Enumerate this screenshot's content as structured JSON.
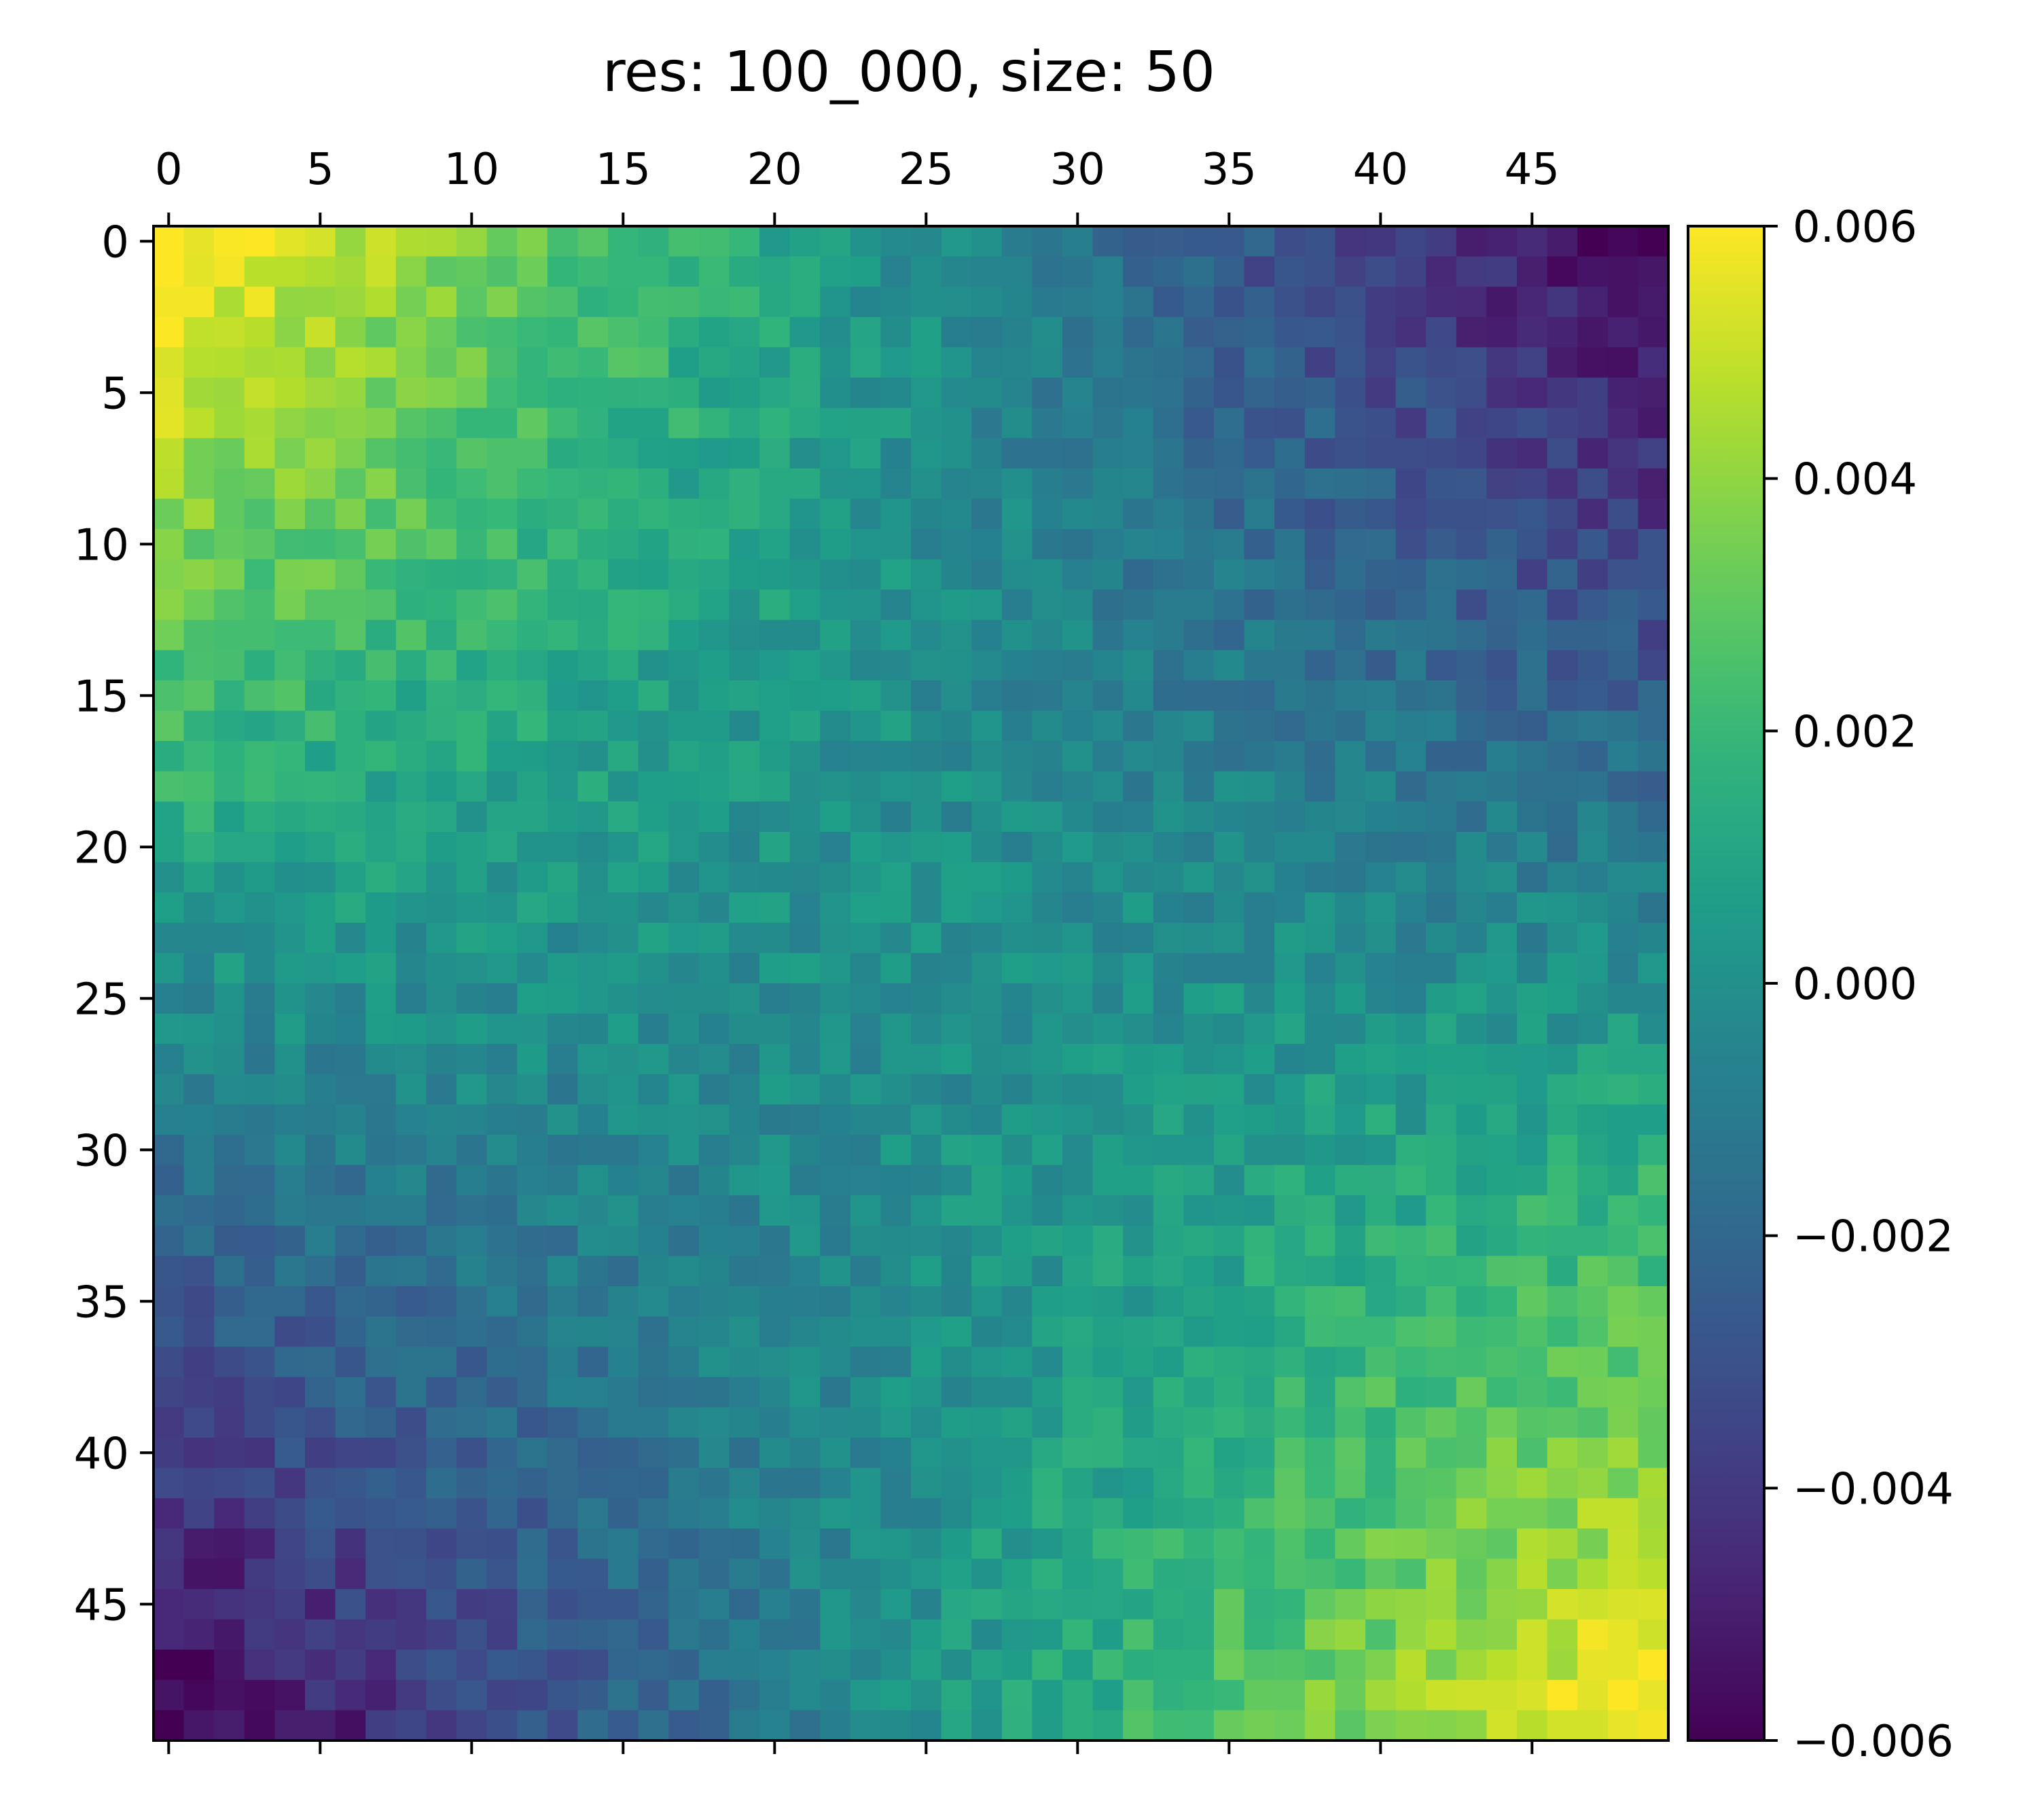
{
  "chart_data": {
    "type": "heatmap",
    "title": "res: 100_000, size: 50",
    "size": 50,
    "x_ticks": [
      0,
      5,
      10,
      15,
      20,
      25,
      30,
      35,
      40,
      45
    ],
    "y_ticks": [
      0,
      5,
      10,
      15,
      20,
      25,
      30,
      35,
      40,
      45
    ],
    "colorbar": {
      "min": -0.006,
      "max": 0.006,
      "ticks": [
        0.006,
        0.004,
        0.002,
        0.0,
        -0.002,
        -0.004,
        -0.006
      ],
      "tick_labels": [
        "0.006",
        "0.004",
        "0.002",
        "0.000",
        "−0.002",
        "−0.004",
        "−0.006"
      ],
      "colormap": "viridis"
    },
    "field": {
      "description": "Cell values follow a diagonal gradient: high (≈+0.006) at top-left and bottom-right corners, low (≈-0.006) at top-right and bottom-left corners.",
      "corners": {
        "top_left": 0.006,
        "top_right": -0.006,
        "bottom_left": -0.006,
        "bottom_right": 0.006
      }
    }
  }
}
